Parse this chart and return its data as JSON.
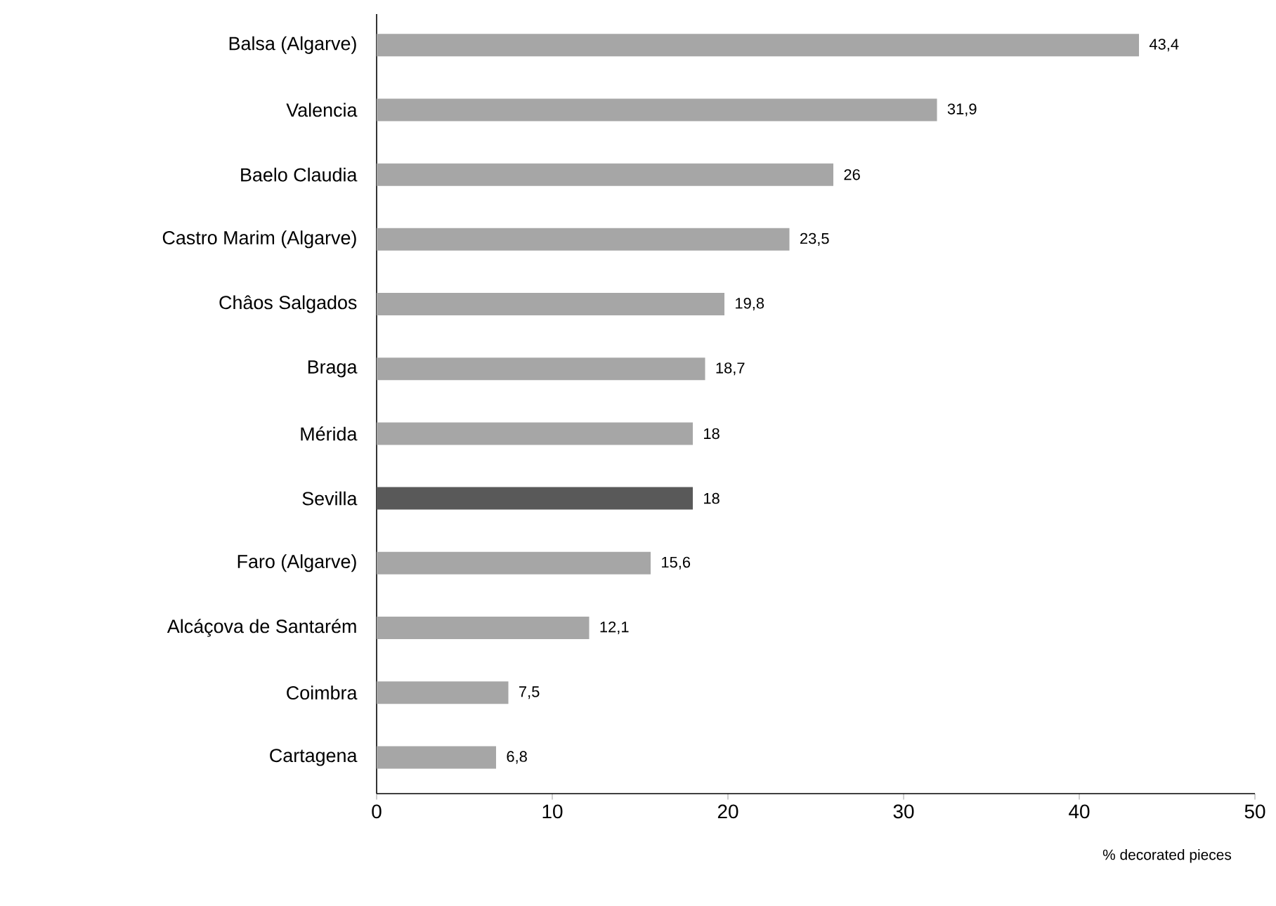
{
  "chart_data": {
    "type": "bar",
    "orientation": "horizontal",
    "xlabel": "% decorated pieces",
    "categories": [
      "Balsa (Algarve)",
      "Valencia",
      "Baelo Claudia",
      "Castro Marim (Algarve)",
      "Châos Salgados",
      "Braga",
      "Mérida",
      "Sevilla",
      "Faro (Algarve)",
      "Alcáçova de Santarém",
      "Coimbra",
      "Cartagena"
    ],
    "values": [
      43.4,
      31.9,
      26,
      23.5,
      19.8,
      18.7,
      18,
      18,
      15.6,
      12.1,
      7.5,
      6.8
    ],
    "value_labels": [
      "43,4",
      "31,9",
      "26",
      "23,5",
      "19,8",
      "18,7",
      "18",
      "18",
      "15,6",
      "12,1",
      "7,5",
      "6,8"
    ],
    "colors": [
      "#a6a6a6",
      "#a6a6a6",
      "#a6a6a6",
      "#a6a6a6",
      "#a6a6a6",
      "#a6a6a6",
      "#a6a6a6",
      "#595959",
      "#a6a6a6",
      "#a6a6a6",
      "#a6a6a6",
      "#a6a6a6"
    ],
    "xlim": [
      0,
      50
    ],
    "xticks": [
      0,
      10,
      20,
      30,
      40,
      50
    ]
  }
}
